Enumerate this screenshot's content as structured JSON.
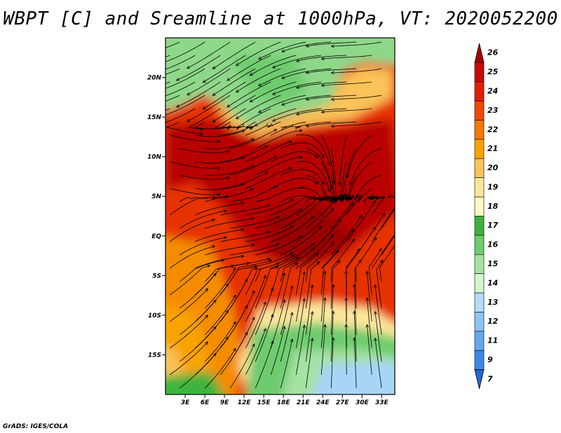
{
  "title": "WBPT [C] and Sreamline at 1000hPa, VT: 2020052200",
  "footer": "GrADS: IGES/COLA",
  "map": {
    "lat_labels": [
      "20N",
      "15N",
      "10N",
      "5N",
      "EQ",
      "5S",
      "10S",
      "15S"
    ],
    "lon_labels": [
      "3E",
      "6E",
      "9E",
      "12E",
      "15E",
      "18E",
      "21E",
      "24E",
      "27E",
      "30E",
      "33E"
    ],
    "lat_values": [
      20,
      15,
      10,
      5,
      0,
      -5,
      -10,
      -15
    ],
    "lon_values": [
      3,
      6,
      9,
      12,
      15,
      18,
      21,
      24,
      27,
      30,
      33
    ],
    "extent": {
      "lon_min": 0,
      "lon_max": 35,
      "lat_min": -20,
      "lat_max": 25
    }
  },
  "colorbar": {
    "labels": [
      "26",
      "25",
      "24",
      "23",
      "22",
      "21",
      "20",
      "19",
      "18",
      "17",
      "16",
      "15",
      "14",
      "13",
      "12",
      "11",
      "9",
      "7"
    ],
    "colors": [
      "#a50000",
      "#c80a00",
      "#e11f00",
      "#f04a00",
      "#f57800",
      "#f9a300",
      "#fbc35a",
      "#fde69c",
      "#fff7c4",
      "#3cb43c",
      "#6ecc6e",
      "#a6e2a2",
      "#d6f3d2",
      "#b4dcf8",
      "#8cc4f2",
      "#64a8ec",
      "#3c8ae4",
      "#2266d8"
    ]
  },
  "colors": {
    "hot": "#b80000",
    "warm": "#e63200",
    "orange": "#f58c00",
    "yellow": "#fde69c",
    "green": "#6ecc6e",
    "lightgreen": "#a6e2a2",
    "blue": "#a8d4f6"
  }
}
